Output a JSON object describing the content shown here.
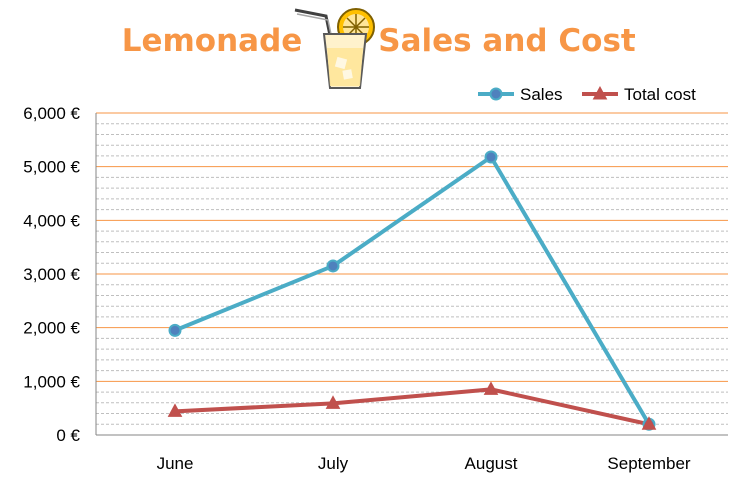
{
  "chart_data": {
    "type": "line",
    "title_left": "Lemonade",
    "title_right": "Sales and Cost",
    "title_icon": "lemonade-glass-icon",
    "categories": [
      "June",
      "July",
      "August",
      "September"
    ],
    "series": [
      {
        "name": "Sales",
        "values": [
          1950,
          3150,
          5180,
          200
        ],
        "color": "#4BACC6",
        "marker": "circle"
      },
      {
        "name": "Total cost",
        "values": [
          440,
          590,
          850,
          200
        ],
        "color": "#C0504D",
        "marker": "triangle"
      }
    ],
    "ylim": [
      0,
      6000
    ],
    "yticks": [
      "0 €",
      "1,000 €",
      "2,000 €",
      "3,000 €",
      "4,000 €",
      "5,000 €",
      "6,000 €"
    ],
    "major_grid_color": "#F79646",
    "minor_grid_color": "#BFBFBF",
    "legend_position": "top-right",
    "xlabel": "",
    "ylabel": ""
  }
}
